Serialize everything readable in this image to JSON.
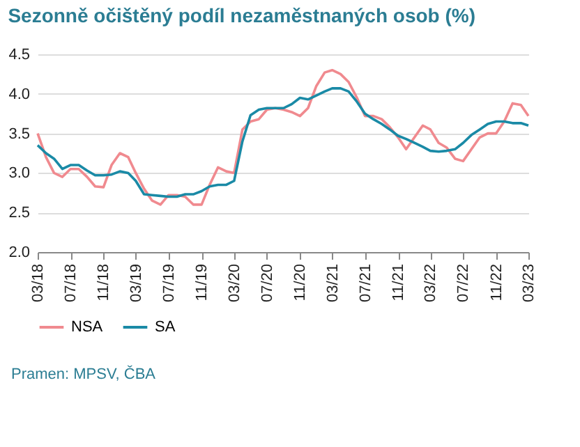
{
  "chart_data": {
    "type": "line",
    "title": "Sezonně očištěný podíl nezaměstnaných osob (%)",
    "x": [
      "2018-03",
      "2018-04",
      "2018-05",
      "2018-06",
      "2018-07",
      "2018-08",
      "2018-09",
      "2018-10",
      "2018-11",
      "2018-12",
      "2019-01",
      "2019-02",
      "2019-03",
      "2019-04",
      "2019-05",
      "2019-06",
      "2019-07",
      "2019-08",
      "2019-09",
      "2019-10",
      "2019-11",
      "2019-12",
      "2020-01",
      "2020-02",
      "2020-03",
      "2020-04",
      "2020-05",
      "2020-06",
      "2020-07",
      "2020-08",
      "2020-09",
      "2020-10",
      "2020-11",
      "2020-12",
      "2021-01",
      "2021-02",
      "2021-03",
      "2021-04",
      "2021-05",
      "2021-06",
      "2021-07",
      "2021-08",
      "2021-09",
      "2021-10",
      "2021-11",
      "2021-12",
      "2022-01",
      "2022-02",
      "2022-03",
      "2022-04",
      "2022-05",
      "2022-06",
      "2022-07",
      "2022-08",
      "2022-09",
      "2022-10",
      "2022-11",
      "2022-12",
      "2023-01",
      "2023-02",
      "2023-03"
    ],
    "series": [
      {
        "name": "NSA",
        "color": "#f08a8f",
        "values": [
          3.5,
          3.2,
          3.0,
          2.95,
          3.05,
          3.05,
          2.95,
          2.83,
          2.82,
          3.1,
          3.25,
          3.2,
          3.0,
          2.8,
          2.65,
          2.6,
          2.72,
          2.72,
          2.7,
          2.6,
          2.6,
          2.85,
          3.07,
          3.02,
          3.0,
          3.55,
          3.65,
          3.68,
          3.8,
          3.82,
          3.8,
          3.77,
          3.72,
          3.82,
          4.1,
          4.27,
          4.3,
          4.25,
          4.15,
          3.95,
          3.72,
          3.72,
          3.68,
          3.58,
          3.45,
          3.3,
          3.45,
          3.6,
          3.55,
          3.38,
          3.32,
          3.18,
          3.15,
          3.3,
          3.45,
          3.5,
          3.5,
          3.65,
          3.88,
          3.86,
          3.72
        ]
      },
      {
        "name": "SA",
        "color": "#1a8aa6",
        "values": [
          3.35,
          3.25,
          3.18,
          3.05,
          3.1,
          3.1,
          3.03,
          2.97,
          2.97,
          2.98,
          3.02,
          3.0,
          2.9,
          2.73,
          2.72,
          2.71,
          2.7,
          2.7,
          2.73,
          2.73,
          2.77,
          2.83,
          2.85,
          2.85,
          2.9,
          3.4,
          3.73,
          3.8,
          3.82,
          3.82,
          3.82,
          3.87,
          3.95,
          3.93,
          3.98,
          4.03,
          4.07,
          4.07,
          4.03,
          3.9,
          3.75,
          3.68,
          3.62,
          3.55,
          3.47,
          3.43,
          3.38,
          3.33,
          3.28,
          3.27,
          3.28,
          3.3,
          3.38,
          3.48,
          3.55,
          3.62,
          3.65,
          3.65,
          3.63,
          3.63,
          3.6
        ]
      }
    ],
    "xlim": [
      "2018-03",
      "2023-03"
    ],
    "xticks": [
      {
        "value": "2018-03",
        "label": "03/18"
      },
      {
        "value": "2018-07",
        "label": "07/18"
      },
      {
        "value": "2018-11",
        "label": "11/18"
      },
      {
        "value": "2019-03",
        "label": "03/19"
      },
      {
        "value": "2019-07",
        "label": "07/19"
      },
      {
        "value": "2019-11",
        "label": "11/19"
      },
      {
        "value": "2020-03",
        "label": "03/20"
      },
      {
        "value": "2020-07",
        "label": "07/20"
      },
      {
        "value": "2020-11",
        "label": "11/20"
      },
      {
        "value": "2021-03",
        "label": "03/21"
      },
      {
        "value": "2021-07",
        "label": "07/21"
      },
      {
        "value": "2021-11",
        "label": "11/21"
      },
      {
        "value": "2022-03",
        "label": "03/22"
      },
      {
        "value": "2022-07",
        "label": "07/22"
      },
      {
        "value": "2022-11",
        "label": "11/22"
      },
      {
        "value": "2023-03",
        "label": "03/23"
      }
    ],
    "ylim": [
      2.0,
      4.5
    ],
    "yticks": [
      {
        "value": 2,
        "label": "2.0"
      },
      {
        "value": 2.5,
        "label": "2.5"
      },
      {
        "value": 3,
        "label": "3.0"
      },
      {
        "value": 3.5,
        "label": "3.5"
      },
      {
        "value": 4,
        "label": "4.0"
      },
      {
        "value": 4.5,
        "label": "4.5"
      }
    ],
    "grid": "y",
    "legend": "bottom",
    "marker": "none",
    "line_style": "solid",
    "annotations": [
      "Pramen: MPSV, ČBA"
    ]
  }
}
